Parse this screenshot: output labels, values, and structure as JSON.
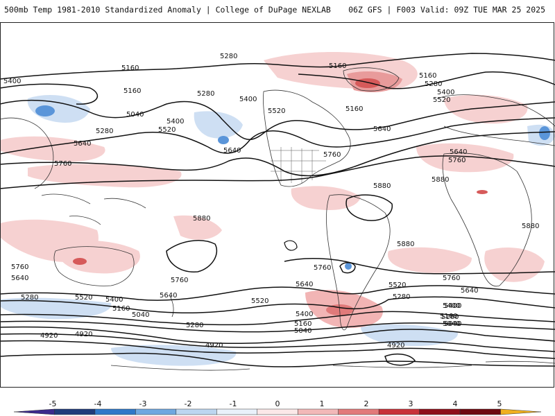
{
  "header": {
    "left_title": "500mb Temp 1981-2010 Standardized Anomaly | College of DuPage NEXLAB",
    "right_title": "06Z GFS | F003 Valid: 09Z TUE MAR 25 2025"
  },
  "contour_labels": [
    "5280",
    "5160",
    "5400",
    "5160",
    "5040",
    "5280",
    "5520",
    "5400",
    "5280",
    "5640",
    "5640",
    "5760",
    "5400",
    "5520",
    "5160",
    "5160",
    "5160",
    "5280",
    "5400",
    "5520",
    "5640",
    "5760",
    "5640",
    "5760",
    "5880",
    "5880",
    "5880",
    "5880",
    "5880",
    "5760",
    "5640",
    "5520",
    "5400",
    "5280",
    "5160",
    "5040",
    "4920",
    "4920",
    "5760",
    "5640",
    "5520",
    "5400",
    "5160",
    "5040",
    "5280",
    "4920",
    "5760",
    "5640",
    "5520",
    "5280",
    "5400",
    "5160",
    "5040",
    "4920",
    "5760",
    "5640",
    "5400",
    "5160",
    "5040"
  ],
  "colorbar": {
    "tick_labels": [
      "-5",
      "-4",
      "-3",
      "-2",
      "-1",
      "0",
      "1",
      "2",
      "3",
      "4",
      "5"
    ],
    "colors": [
      "#3b2a8c",
      "#1f3b7a",
      "#2f78c8",
      "#6fa8e0",
      "#bcd6f0",
      "#e9f1fa",
      "#fbe8e8",
      "#f2b8b8",
      "#e27a7a",
      "#c8323a",
      "#8e0f1a",
      "#6e0910",
      "#f0b020"
    ]
  },
  "colors": {
    "warm_anomaly": "#f4c4c4",
    "strong_warm": "#d65a5a",
    "cold_anomaly": "#c4d9f2",
    "strong_cold": "#4a88d6",
    "contour": "#111111",
    "coastline": "#333333"
  }
}
